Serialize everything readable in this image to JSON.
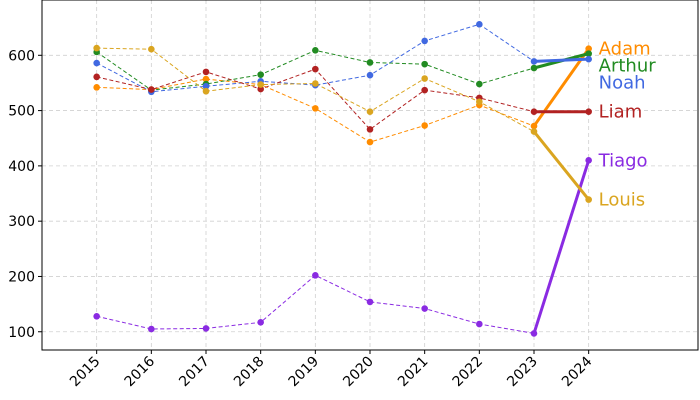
{
  "chart_data": {
    "type": "line",
    "title": "",
    "xlabel": "",
    "ylabel": "",
    "x": [
      2015,
      2016,
      2017,
      2018,
      2019,
      2020,
      2021,
      2022,
      2023,
      2024
    ],
    "xlim": [
      2014.0,
      2026.0
    ],
    "ylim": [
      67,
      700
    ],
    "yticks": [
      100,
      200,
      300,
      400,
      500,
      600
    ],
    "grid": true,
    "legend": "direct labels at the right end of each line",
    "highlight_segment": "2023 to 2024 drawn thick and solid; 2015 to 2023 drawn thin and dashed",
    "series": [
      {
        "name": "Adam",
        "color": "#ff8c00",
        "values": [
          542,
          538,
          557,
          547,
          504,
          443,
          473,
          510,
          472,
          612
        ]
      },
      {
        "name": "Arthur",
        "color": "#228b22",
        "values": [
          606,
          537,
          548,
          565,
          609,
          587,
          584,
          548,
          577,
          603
        ]
      },
      {
        "name": "Noah",
        "color": "#4169e1",
        "values": [
          586,
          534,
          544,
          553,
          546,
          564,
          626,
          656,
          589,
          593
        ]
      },
      {
        "name": "Liam",
        "color": "#b22222",
        "values": [
          561,
          538,
          570,
          539,
          575,
          466,
          537,
          523,
          498,
          498
        ]
      },
      {
        "name": "Tiago",
        "color": "#8a2be2",
        "values": [
          128,
          105,
          106,
          117,
          202,
          154,
          142,
          114,
          97,
          410
        ]
      },
      {
        "name": "Louis",
        "color": "#daa520",
        "values": [
          613,
          611,
          535,
          547,
          549,
          498,
          558,
          516,
          462,
          339
        ]
      }
    ]
  }
}
